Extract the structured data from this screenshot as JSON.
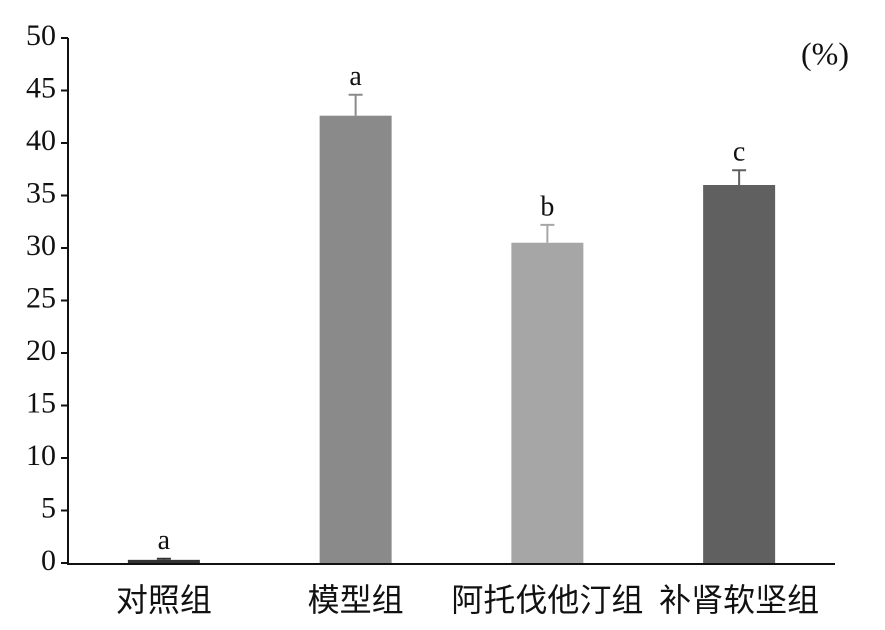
{
  "chart_data": {
    "type": "bar",
    "unit_label": "(%)",
    "categories": [
      "对照组",
      "模型组",
      "阿托伐他汀组",
      "补肾软坚组"
    ],
    "values": [
      0.3,
      42.6,
      30.5,
      36.0
    ],
    "errors": [
      0.1,
      2.0,
      1.7,
      1.4
    ],
    "annotations": [
      "a",
      "a",
      "b",
      "c"
    ],
    "colors": [
      "#333333",
      "#8a8a8a",
      "#a6a6a6",
      "#606060"
    ],
    "ylim": [
      0,
      50
    ],
    "yticks": [
      0,
      5,
      10,
      15,
      20,
      25,
      30,
      35,
      40,
      45,
      50
    ],
    "grid": false
  }
}
